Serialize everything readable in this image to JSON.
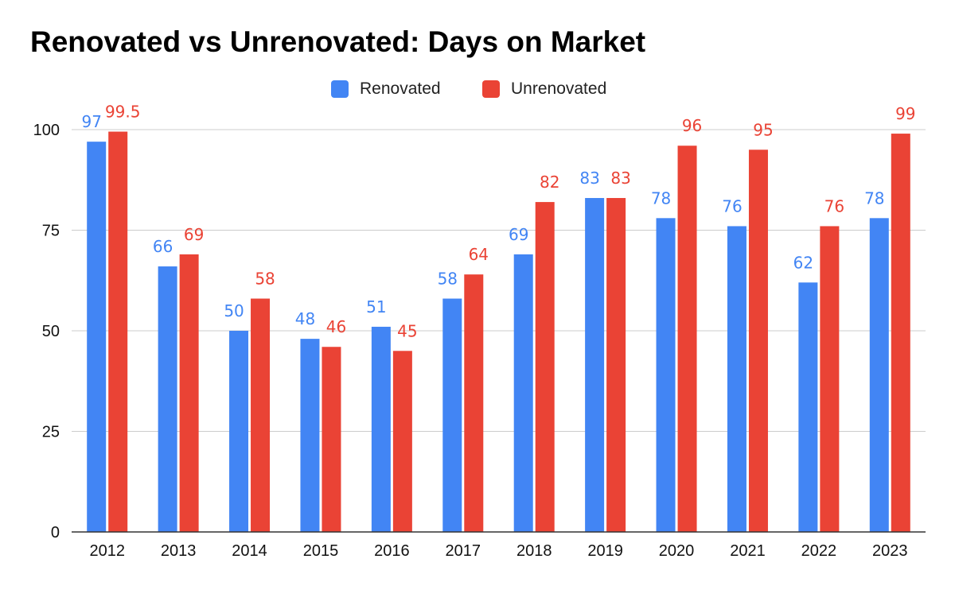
{
  "title": "Renovated vs Unrenovated: Days on Market",
  "legend": {
    "renovated": "Renovated",
    "unrenovated": "Unrenovated"
  },
  "colors": {
    "renovated": "#4285f4",
    "unrenovated": "#ea4335",
    "grid": "#cccccc",
    "axis": "#333333"
  },
  "chart_data": {
    "type": "bar",
    "title": "Renovated vs Unrenovated: Days on Market",
    "categories": [
      "2012",
      "2013",
      "2014",
      "2015",
      "2016",
      "2017",
      "2018",
      "2019",
      "2020",
      "2021",
      "2022",
      "2023"
    ],
    "series": [
      {
        "name": "Renovated",
        "values": [
          97,
          66,
          50,
          48,
          51,
          58,
          69,
          83,
          78,
          76,
          62,
          78
        ]
      },
      {
        "name": "Unrenovated",
        "values": [
          99.5,
          69,
          58,
          46,
          45,
          64,
          82,
          83,
          96,
          95,
          76,
          99
        ]
      }
    ],
    "data_labels": [
      [
        "97",
        "66",
        "50",
        "48",
        "51",
        "58",
        "69",
        "83",
        "78",
        "76",
        "62",
        "78"
      ],
      [
        "99.5",
        "69",
        "58",
        "46",
        "45",
        "64",
        "82",
        "83",
        "96",
        "95",
        "76",
        "99"
      ]
    ],
    "yticks": [
      "0",
      "25",
      "50",
      "75",
      "100"
    ],
    "ylim": [
      0,
      100
    ],
    "xlabel": "",
    "ylabel": "",
    "grid": true,
    "legend_position": "top-center"
  }
}
